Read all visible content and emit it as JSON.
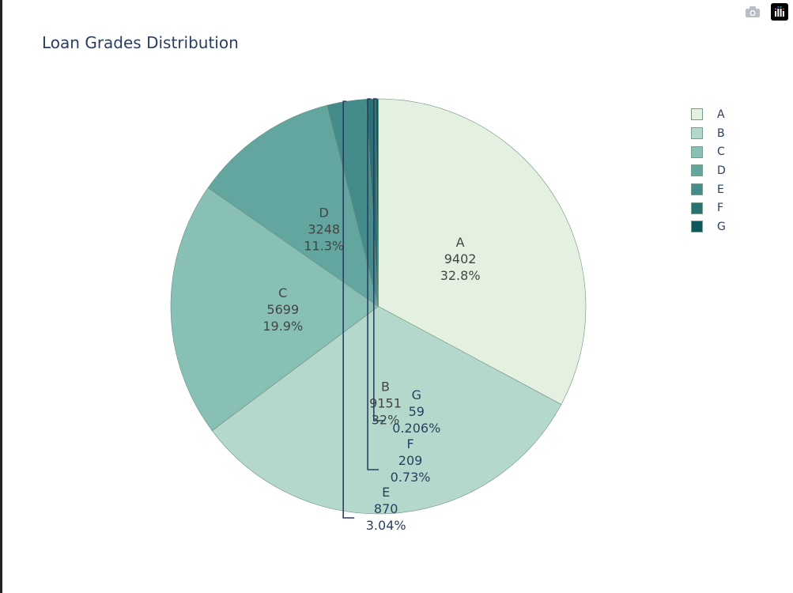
{
  "title": "Loan Grades Distribution",
  "modebar": {
    "camera_icon": "camera-icon",
    "logo_icon": "plotly-logo-icon"
  },
  "chart_data": {
    "type": "pie",
    "title": "Loan Grades Distribution",
    "labels": [
      "A",
      "B",
      "C",
      "D",
      "E",
      "F",
      "G"
    ],
    "values": [
      9402,
      9151,
      5699,
      3248,
      870,
      209,
      59
    ],
    "percent_text": [
      "32.8%",
      "32%",
      "19.9%",
      "11.3%",
      "3.04%",
      "0.73%",
      "0.206%"
    ],
    "colors": [
      "#e4f1e1",
      "#b4d9cc",
      "#89c0b6",
      "#63a6a0",
      "#448c8a",
      "#287274",
      "#0d585f"
    ],
    "text_info": "label+value+percent",
    "direction": "clockwise",
    "sort": "descending",
    "legend_position": "top-right"
  }
}
